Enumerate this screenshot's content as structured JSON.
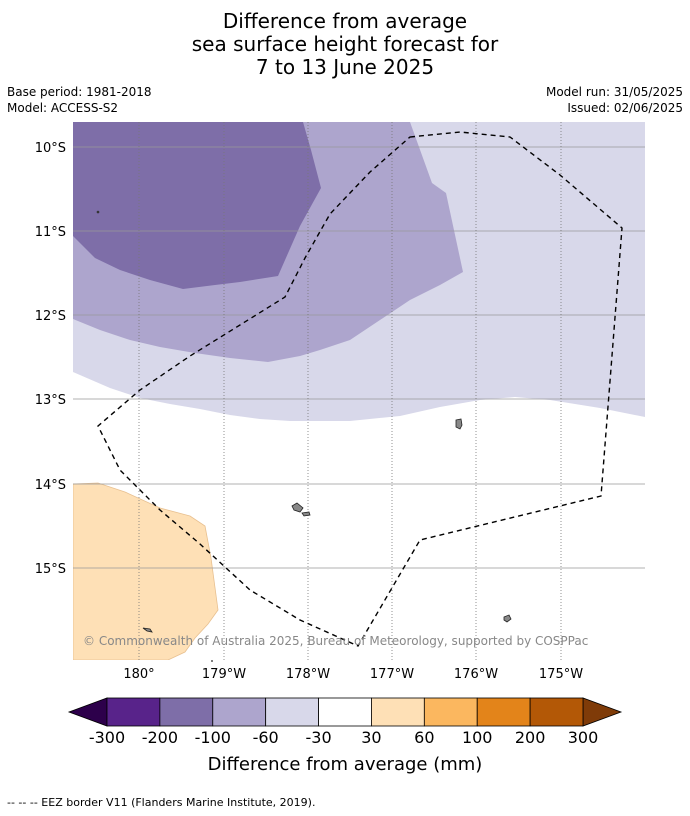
{
  "title_lines": [
    "Difference from average",
    "sea surface height forecast for",
    "7 to 13 June 2025"
  ],
  "base_period": "Base period: 1981-2018",
  "model": "Model: ACCESS-S2",
  "model_run": "Model run: 31/05/2025",
  "issued": "Issued: 02/06/2025",
  "lat_labels": [
    "10°S",
    "11°S",
    "12°S",
    "13°S",
    "14°S",
    "15°S"
  ],
  "lon_labels": [
    "180°",
    "179°W",
    "178°W",
    "177°W",
    "176°W",
    "175°W"
  ],
  "copyright": "© Commonwealth of Australia 2025, Bureau of Meteorology, supported by COSPPac",
  "colorbar": {
    "labels": [
      "-300",
      "-200",
      "-100",
      "-60",
      "-30",
      "30",
      "60",
      "100",
      "200",
      "300"
    ],
    "colors": [
      "#58238a",
      "#7e6ea8",
      "#ada5cd",
      "#d8d8ea",
      "#ffffff",
      "#fee0b6",
      "#fbb75f",
      "#e3841a",
      "#b35806"
    ],
    "under_color": "#2d004b",
    "over_color": "#7f3b08",
    "title": "Difference from average (mm)"
  },
  "footnote": "-- -- -- EEZ border V11 (Flanders Marine Institute, 2019)."
}
